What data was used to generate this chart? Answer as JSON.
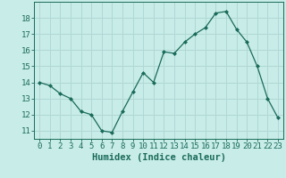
{
  "x": [
    0,
    1,
    2,
    3,
    4,
    5,
    6,
    7,
    8,
    9,
    10,
    11,
    12,
    13,
    14,
    15,
    16,
    17,
    18,
    19,
    20,
    21,
    22,
    23
  ],
  "y": [
    14.0,
    13.8,
    13.3,
    13.0,
    12.2,
    12.0,
    11.0,
    10.9,
    12.2,
    13.4,
    14.6,
    14.0,
    15.9,
    15.8,
    16.5,
    17.0,
    17.4,
    18.3,
    18.4,
    17.3,
    16.5,
    15.0,
    13.0,
    11.8
  ],
  "line_color": "#1a6b5a",
  "marker": "D",
  "marker_size": 2.0,
  "bg_color": "#c8ece8",
  "grid_color": "#b0d8d4",
  "xlabel": "Humidex (Indice chaleur)",
  "xlim": [
    -0.5,
    23.5
  ],
  "ylim": [
    10.5,
    19.0
  ],
  "yticks": [
    11,
    12,
    13,
    14,
    15,
    16,
    17,
    18
  ],
  "xticks": [
    0,
    1,
    2,
    3,
    4,
    5,
    6,
    7,
    8,
    9,
    10,
    11,
    12,
    13,
    14,
    15,
    16,
    17,
    18,
    19,
    20,
    21,
    22,
    23
  ],
  "tick_color": "#1a6b5a",
  "label_color": "#1a6b5a",
  "tick_fontsize": 6.5,
  "xlabel_fontsize": 7.5,
  "linewidth": 0.9
}
